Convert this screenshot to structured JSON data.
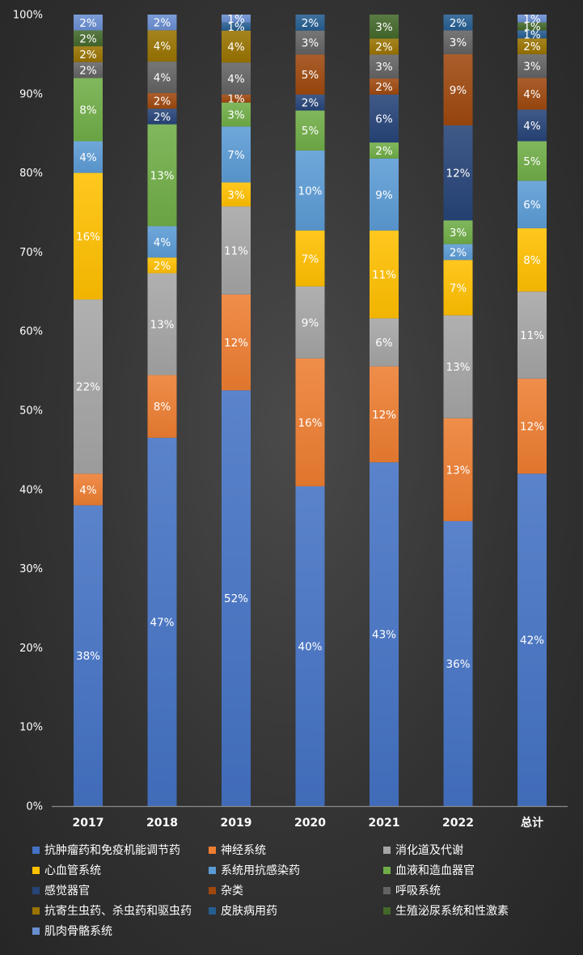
{
  "chart_data": {
    "type": "bar",
    "stacked": true,
    "percent": true,
    "categories": [
      "2017",
      "2018",
      "2019",
      "2020",
      "2021",
      "2022",
      "总计"
    ],
    "ylim": [
      0,
      100
    ],
    "yticks": [
      "0%",
      "10%",
      "20%",
      "30%",
      "40%",
      "50%",
      "60%",
      "70%",
      "80%",
      "90%",
      "100%"
    ],
    "grid": false,
    "legend_position": "bottom",
    "series": [
      {
        "name": "抗肿瘤药和免疫机能调节药",
        "color": "#4472C4",
        "values": [
          38,
          47,
          52,
          40,
          43,
          36,
          42
        ]
      },
      {
        "name": "神经系统",
        "color": "#ED7D31",
        "values": [
          4,
          8,
          12,
          16,
          12,
          13,
          12
        ]
      },
      {
        "name": "消化道及代谢",
        "color": "#A5A5A5",
        "values": [
          22,
          13,
          11,
          9,
          6,
          13,
          11
        ]
      },
      {
        "name": "心血管系统",
        "color": "#FFC000",
        "values": [
          16,
          2,
          3,
          7,
          11,
          7,
          8
        ]
      },
      {
        "name": "系统用抗感染药",
        "color": "#5B9BD5",
        "values": [
          4,
          4,
          7,
          10,
          9,
          2,
          6
        ]
      },
      {
        "name": "血液和造血器官",
        "color": "#70AD47",
        "values": [
          8,
          13,
          3,
          5,
          2,
          3,
          5
        ]
      },
      {
        "name": "感觉器官",
        "color": "#264478",
        "values": [
          0,
          2,
          0,
          2,
          6,
          12,
          4
        ]
      },
      {
        "name": "杂类",
        "color": "#9E480E",
        "values": [
          0,
          2,
          1,
          5,
          2,
          9,
          4
        ]
      },
      {
        "name": "呼吸系统",
        "color": "#636363",
        "values": [
          2,
          4,
          4,
          3,
          3,
          3,
          3
        ]
      },
      {
        "name": "抗寄生虫药、杀虫药和驱虫药",
        "color": "#997300",
        "values": [
          2,
          4,
          4,
          0,
          2,
          0,
          2
        ]
      },
      {
        "name": "皮肤病用药",
        "color": "#255E91",
        "values": [
          0,
          0,
          1,
          2,
          0,
          2,
          1
        ]
      },
      {
        "name": "生殖泌尿系统和性激素",
        "color": "#43682B",
        "values": [
          2,
          0,
          0,
          0,
          3,
          0,
          1
        ]
      },
      {
        "name": "肌肉骨骼系统",
        "color": "#698ED0",
        "values": [
          2,
          2,
          1,
          0,
          0,
          0,
          1
        ]
      }
    ]
  }
}
